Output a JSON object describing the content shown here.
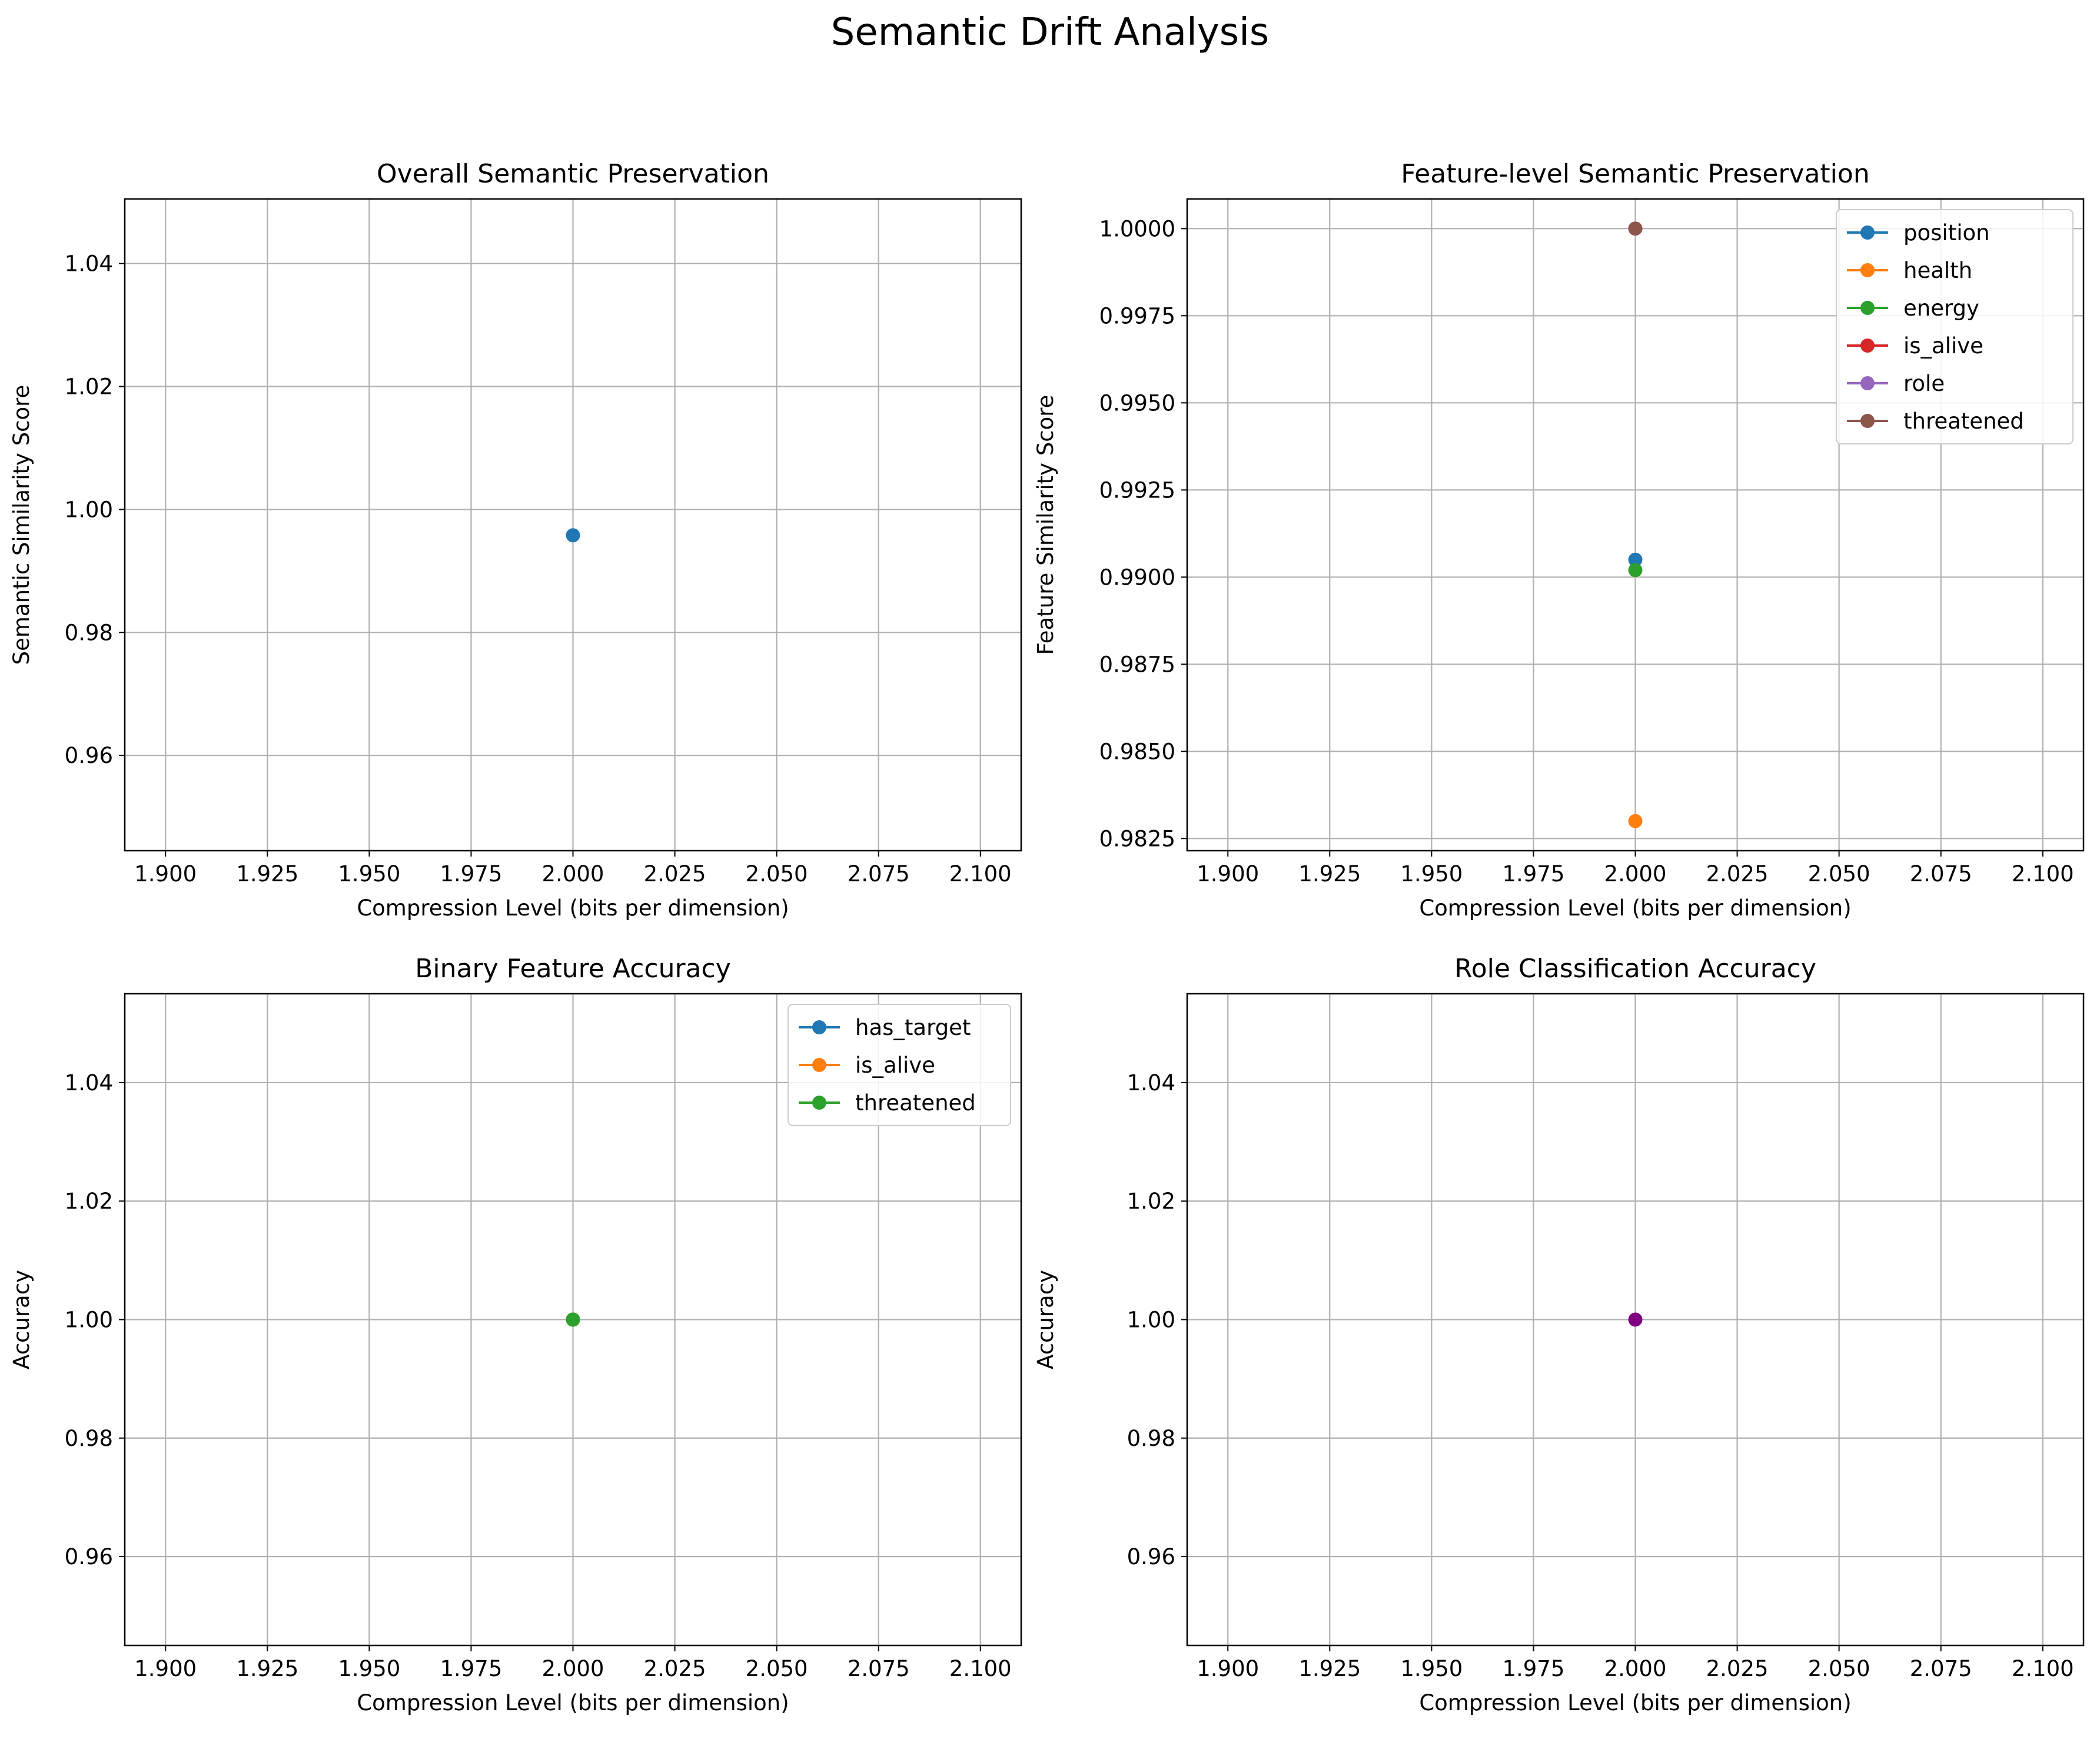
{
  "figure": {
    "title": "Semantic Drift Analysis"
  },
  "chart_data": [
    {
      "type": "scatter",
      "title": "Overall Semantic Preservation",
      "xlabel": "Compression Level (bits per dimension)",
      "ylabel": "Semantic Similarity Score",
      "xlim": [
        1.89,
        2.11
      ],
      "ylim": [
        0.9445,
        1.0505
      ],
      "xticks": [
        "1.900",
        "1.925",
        "1.950",
        "1.975",
        "2.000",
        "2.025",
        "2.050",
        "2.075",
        "2.100"
      ],
      "yticks": [
        "0.96",
        "0.98",
        "1.00",
        "1.02",
        "1.04"
      ],
      "grid": true,
      "legend": null,
      "series": [
        {
          "color": "#1f77b4",
          "x": [
            2.0
          ],
          "y": [
            0.9958
          ]
        }
      ]
    },
    {
      "type": "line",
      "title": "Feature-level Semantic Preservation",
      "xlabel": "Compression Level (bits per dimension)",
      "ylabel": "Feature Similarity Score",
      "xlim": [
        1.89,
        2.11
      ],
      "ylim": [
        0.98215,
        1.00085
      ],
      "xticks": [
        "1.900",
        "1.925",
        "1.950",
        "1.975",
        "2.000",
        "2.025",
        "2.050",
        "2.075",
        "2.100"
      ],
      "yticks": [
        "0.9825",
        "0.9850",
        "0.9875",
        "0.9900",
        "0.9925",
        "0.9950",
        "0.9975",
        "1.0000"
      ],
      "grid": true,
      "legend": "top-right",
      "series": [
        {
          "name": "position",
          "color": "#1f77b4",
          "x": [
            2.0
          ],
          "y": [
            0.9905
          ]
        },
        {
          "name": "health",
          "color": "#ff7f0e",
          "x": [
            2.0
          ],
          "y": [
            0.983
          ]
        },
        {
          "name": "energy",
          "color": "#2ca02c",
          "x": [
            2.0
          ],
          "y": [
            0.9902
          ]
        },
        {
          "name": "is_alive",
          "color": "#d62728",
          "x": [
            2.0
          ],
          "y": [
            1.0
          ]
        },
        {
          "name": "role",
          "color": "#9467bd",
          "x": [
            2.0
          ],
          "y": [
            1.0
          ]
        },
        {
          "name": "threatened",
          "color": "#8c564b",
          "x": [
            2.0
          ],
          "y": [
            1.0
          ]
        }
      ]
    },
    {
      "type": "line",
      "title": "Binary Feature Accuracy",
      "xlabel": "Compression Level (bits per dimension)",
      "ylabel": "Accuracy",
      "xlim": [
        1.89,
        2.11
      ],
      "ylim": [
        0.945,
        1.055
      ],
      "xticks": [
        "1.900",
        "1.925",
        "1.950",
        "1.975",
        "2.000",
        "2.025",
        "2.050",
        "2.075",
        "2.100"
      ],
      "yticks": [
        "0.96",
        "0.98",
        "1.00",
        "1.02",
        "1.04"
      ],
      "grid": true,
      "legend": "top-right",
      "series": [
        {
          "name": "has_target",
          "color": "#1f77b4",
          "x": [
            2.0
          ],
          "y": [
            1.0
          ]
        },
        {
          "name": "is_alive",
          "color": "#ff7f0e",
          "x": [
            2.0
          ],
          "y": [
            1.0
          ]
        },
        {
          "name": "threatened",
          "color": "#2ca02c",
          "x": [
            2.0
          ],
          "y": [
            1.0
          ]
        }
      ]
    },
    {
      "type": "scatter",
      "title": "Role Classification Accuracy",
      "xlabel": "Compression Level (bits per dimension)",
      "ylabel": "Accuracy",
      "xlim": [
        1.89,
        2.11
      ],
      "ylim": [
        0.945,
        1.055
      ],
      "xticks": [
        "1.900",
        "1.925",
        "1.950",
        "1.975",
        "2.000",
        "2.025",
        "2.050",
        "2.075",
        "2.100"
      ],
      "yticks": [
        "0.96",
        "0.98",
        "1.00",
        "1.02",
        "1.04"
      ],
      "grid": true,
      "legend": null,
      "series": [
        {
          "color": "#800080",
          "x": [
            2.0
          ],
          "y": [
            1.0
          ]
        }
      ]
    }
  ]
}
